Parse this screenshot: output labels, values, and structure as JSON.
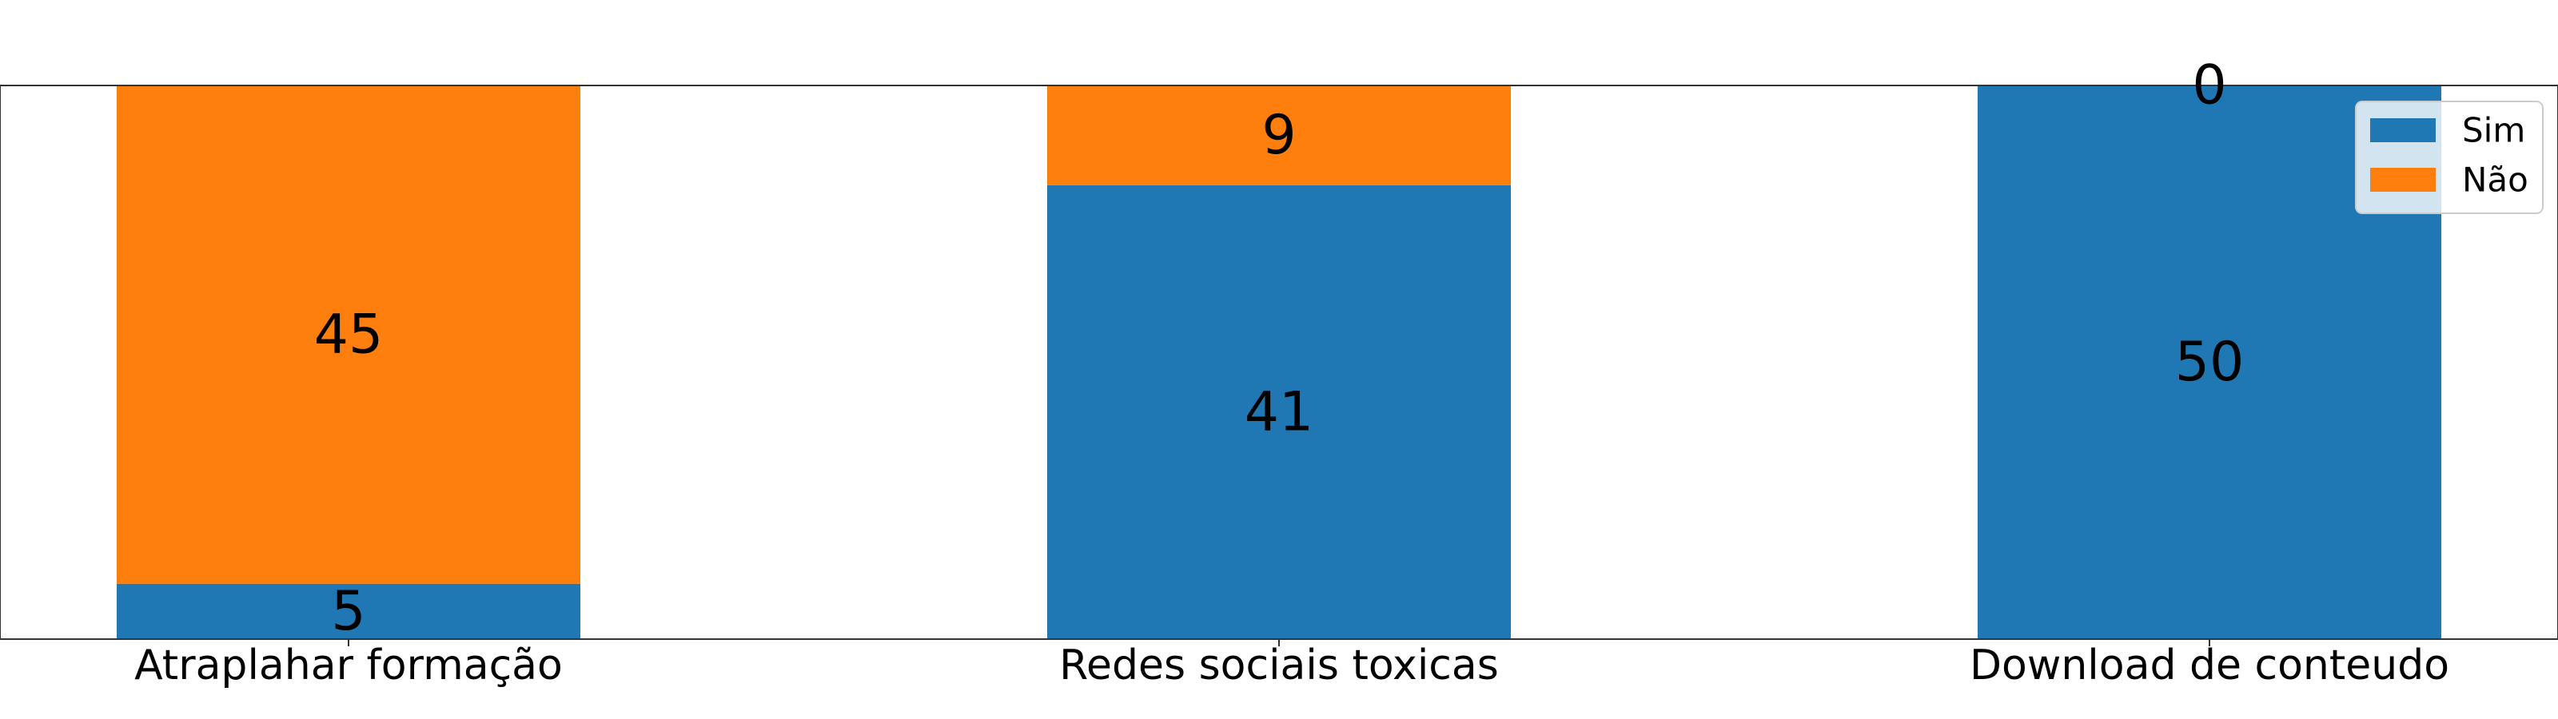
{
  "chart_data": {
    "type": "bar",
    "stacked": true,
    "categories": [
      "Atraplahar formação",
      "Redes sociais toxicas",
      "Download de conteudo"
    ],
    "series": [
      {
        "name": "Sim",
        "values": [
          5,
          41,
          50
        ],
        "color": "#1f77b4"
      },
      {
        "name": "Não",
        "values": [
          45,
          9,
          0
        ],
        "color": "#ff7f0e"
      }
    ],
    "ylim": [
      0,
      50
    ],
    "grid": false,
    "legend_position": "top-right",
    "title": "",
    "xlabel": "",
    "ylabel": ""
  }
}
